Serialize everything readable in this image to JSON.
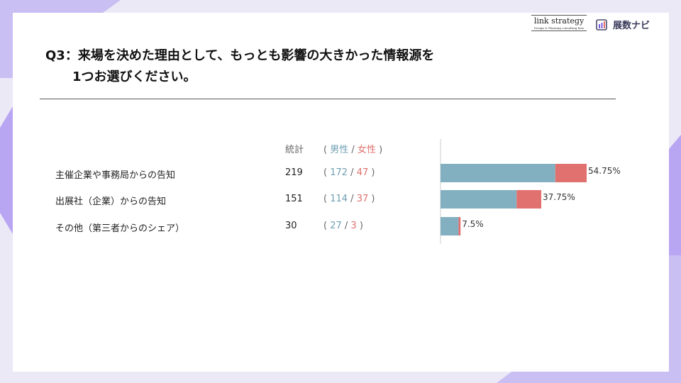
{
  "branding": {
    "link_strategy": "link strategy",
    "link_strategy_tagline": "Design & Planning consulting firm",
    "tensu_navi": "展数ナビ"
  },
  "question": {
    "line1": "Q3：来場を決めた理由として、もっとも影響の大きかった情報源を",
    "line2": "1つお選びください。"
  },
  "table": {
    "header_stat": "統計",
    "header_open": "(",
    "header_male": "男性",
    "header_sep": "/",
    "header_female": "女性",
    "header_close": ")"
  },
  "colors": {
    "male": "#83b0c0",
    "female": "#e0716f",
    "axis": "#cccccc"
  },
  "chart_data": {
    "type": "bar",
    "orientation": "horizontal",
    "stacked": true,
    "categories": [
      "主催企業や事務局からの告知",
      "出展社（企業）からの告知",
      "その他（第三者からのシェア）"
    ],
    "totals": [
      219,
      151,
      30
    ],
    "series": [
      {
        "name": "男性",
        "values": [
          172,
          114,
          27
        ]
      },
      {
        "name": "女性",
        "values": [
          47,
          37,
          3
        ]
      }
    ],
    "percent_labels": [
      "54.75%",
      "37.75%",
      "7.5%"
    ],
    "xlim": [
      0,
      400
    ]
  }
}
